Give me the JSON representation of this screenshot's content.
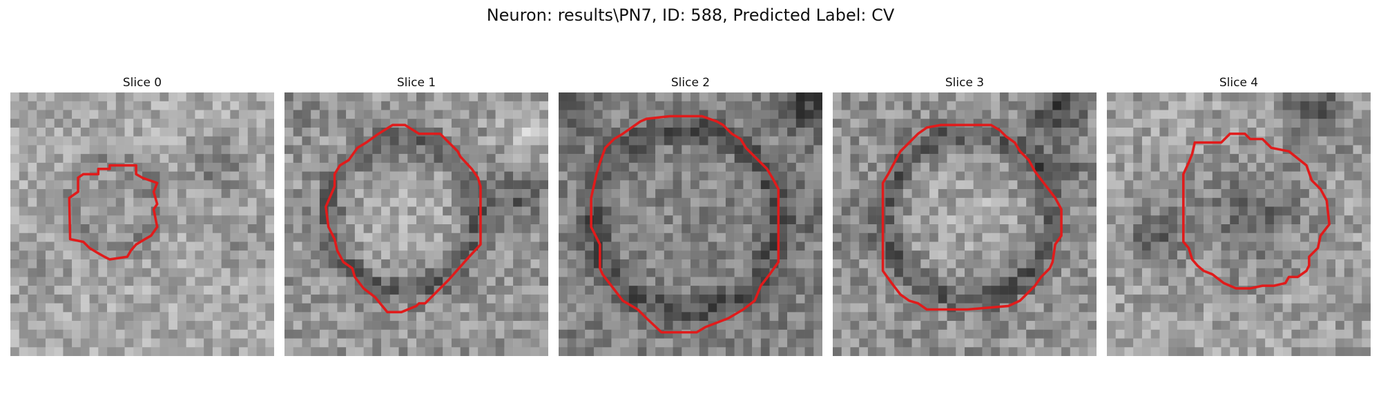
{
  "figure": {
    "title": "Neuron: results\\PN7, ID: 588, Predicted Label: CV",
    "colormap": "gray",
    "contour_color": "#e01b1b",
    "grid_size": 30,
    "slices": [
      {
        "label": "Slice 0",
        "contour": [
          [
            10,
            8.7
          ],
          [
            11.3,
            8.7
          ],
          [
            11.3,
            8.3
          ],
          [
            12.7,
            8.3
          ],
          [
            14.3,
            8.3
          ],
          [
            14.3,
            9.3
          ],
          [
            15,
            9.7
          ],
          [
            16.7,
            10.3
          ],
          [
            16.3,
            11.3
          ],
          [
            16.7,
            12.7
          ],
          [
            16.3,
            13.3
          ],
          [
            16.7,
            15.3
          ],
          [
            16,
            16.3
          ],
          [
            15.3,
            16.7
          ],
          [
            14.3,
            17.3
          ],
          [
            13.7,
            18
          ],
          [
            13.3,
            18.7
          ],
          [
            11.3,
            19
          ],
          [
            10.7,
            18.7
          ],
          [
            10,
            18.3
          ],
          [
            9,
            17.7
          ],
          [
            8.3,
            17
          ],
          [
            6.8,
            16.7
          ],
          [
            6.7,
            12
          ],
          [
            7.7,
            11.3
          ],
          [
            7.7,
            9.7
          ],
          [
            8.3,
            9.3
          ],
          [
            10,
            9.3
          ]
        ]
      },
      {
        "label": "Slice 1",
        "contour": [
          [
            10.7,
            4.7
          ],
          [
            12.3,
            3.7
          ],
          [
            13.7,
            3.7
          ],
          [
            15.3,
            4.7
          ],
          [
            17.7,
            4.7
          ],
          [
            19.7,
            6.7
          ],
          [
            20,
            7.3
          ],
          [
            21.3,
            8.7
          ],
          [
            22,
            9.7
          ],
          [
            22.3,
            10.7
          ],
          [
            22.3,
            13
          ],
          [
            22.3,
            17.3
          ],
          [
            21,
            18.7
          ],
          [
            18.7,
            21.3
          ],
          [
            17,
            23
          ],
          [
            16,
            24
          ],
          [
            15.3,
            24
          ],
          [
            15,
            24.3
          ],
          [
            13.3,
            25
          ],
          [
            11.7,
            25
          ],
          [
            10.3,
            23.3
          ],
          [
            9,
            22.3
          ],
          [
            8,
            21
          ],
          [
            7.7,
            20
          ],
          [
            6.7,
            19.3
          ],
          [
            6,
            18
          ],
          [
            5.7,
            16.7
          ],
          [
            5,
            15.3
          ],
          [
            4.7,
            13
          ],
          [
            5.7,
            10.7
          ],
          [
            5.7,
            9.3
          ],
          [
            6.3,
            8.3
          ],
          [
            7.3,
            7.7
          ],
          [
            8.3,
            6.3
          ],
          [
            9.3,
            5.7
          ]
        ]
      },
      {
        "label": "Slice 2",
        "contour": [
          [
            10,
            3
          ],
          [
            12.7,
            2.7
          ],
          [
            16.3,
            2.7
          ],
          [
            18,
            3.3
          ],
          [
            18.7,
            3.7
          ],
          [
            19.7,
            4.7
          ],
          [
            20.7,
            5.3
          ],
          [
            21.3,
            6.3
          ],
          [
            22.3,
            7.3
          ],
          [
            23.7,
            8.7
          ],
          [
            24.3,
            9.7
          ],
          [
            25,
            11
          ],
          [
            25,
            19.3
          ],
          [
            24,
            20.7
          ],
          [
            23,
            22
          ],
          [
            22.3,
            23.7
          ],
          [
            21,
            24.7
          ],
          [
            19.3,
            25.7
          ],
          [
            16.7,
            26.7
          ],
          [
            15.7,
            27.3
          ],
          [
            12.3,
            27.3
          ],
          [
            11.7,
            27.3
          ],
          [
            10,
            25.7
          ],
          [
            9,
            24.7
          ],
          [
            7.3,
            23.7
          ],
          [
            6,
            22
          ],
          [
            5,
            20.7
          ],
          [
            4.7,
            20
          ],
          [
            4.7,
            17.3
          ],
          [
            3.7,
            15.3
          ],
          [
            3.7,
            12
          ],
          [
            4.3,
            9.3
          ],
          [
            4.7,
            8
          ],
          [
            5.3,
            6.3
          ],
          [
            6.3,
            5.3
          ],
          [
            7.3,
            4.7
          ],
          [
            8.3,
            4
          ],
          [
            9.3,
            3.3
          ]
        ]
      },
      {
        "label": "Slice 3",
        "contour": [
          [
            10.7,
            4
          ],
          [
            12.3,
            3.7
          ],
          [
            14.3,
            3.7
          ],
          [
            18,
            3.7
          ],
          [
            19,
            4.3
          ],
          [
            19.7,
            5
          ],
          [
            20.7,
            5.7
          ],
          [
            21.3,
            6.7
          ],
          [
            22.3,
            7.7
          ],
          [
            23,
            9
          ],
          [
            24,
            10.3
          ],
          [
            25.3,
            12
          ],
          [
            26,
            13.3
          ],
          [
            26,
            16.3
          ],
          [
            25.3,
            17.3
          ],
          [
            25,
            19.3
          ],
          [
            24.7,
            20
          ],
          [
            23.7,
            21
          ],
          [
            23,
            22
          ],
          [
            22,
            23
          ],
          [
            21.3,
            23.7
          ],
          [
            20,
            24.3
          ],
          [
            15.3,
            24.7
          ],
          [
            10.7,
            24.7
          ],
          [
            9.7,
            24
          ],
          [
            8.7,
            23.7
          ],
          [
            7.7,
            23
          ],
          [
            6.7,
            21.7
          ],
          [
            5.7,
            20.3
          ],
          [
            5.7,
            18.3
          ],
          [
            5.7,
            13.3
          ],
          [
            5.7,
            10.3
          ],
          [
            6.3,
            9.3
          ],
          [
            7,
            8
          ],
          [
            7.7,
            6.7
          ],
          [
            8.7,
            5.7
          ],
          [
            9.7,
            4.7
          ]
        ]
      },
      {
        "label": "Slice 4",
        "contour": [
          [
            10,
            5.7
          ],
          [
            13,
            5.7
          ],
          [
            14,
            4.7
          ],
          [
            15.7,
            4.7
          ],
          [
            16.3,
            5.3
          ],
          [
            17.7,
            5.3
          ],
          [
            18.7,
            6.3
          ],
          [
            20.7,
            6.7
          ],
          [
            22.7,
            8.3
          ],
          [
            23.3,
            10
          ],
          [
            24.3,
            11
          ],
          [
            25,
            12.3
          ],
          [
            25.3,
            15
          ],
          [
            24.3,
            16.3
          ],
          [
            24,
            17.7
          ],
          [
            23,
            18.7
          ],
          [
            23,
            19.7
          ],
          [
            22.7,
            20.3
          ],
          [
            21.7,
            21
          ],
          [
            20.7,
            21
          ],
          [
            20.3,
            21.7
          ],
          [
            19,
            22
          ],
          [
            17.7,
            22
          ],
          [
            16.3,
            22.3
          ],
          [
            14.7,
            22.3
          ],
          [
            13.3,
            21.7
          ],
          [
            12,
            20.7
          ],
          [
            11,
            20.3
          ],
          [
            10.3,
            19.7
          ],
          [
            9.7,
            19
          ],
          [
            9.3,
            17.7
          ],
          [
            8.7,
            17
          ],
          [
            8.7,
            14.3
          ],
          [
            8.7,
            11.3
          ],
          [
            8.7,
            9.3
          ],
          [
            9.3,
            8
          ],
          [
            9.7,
            7
          ]
        ]
      }
    ]
  }
}
